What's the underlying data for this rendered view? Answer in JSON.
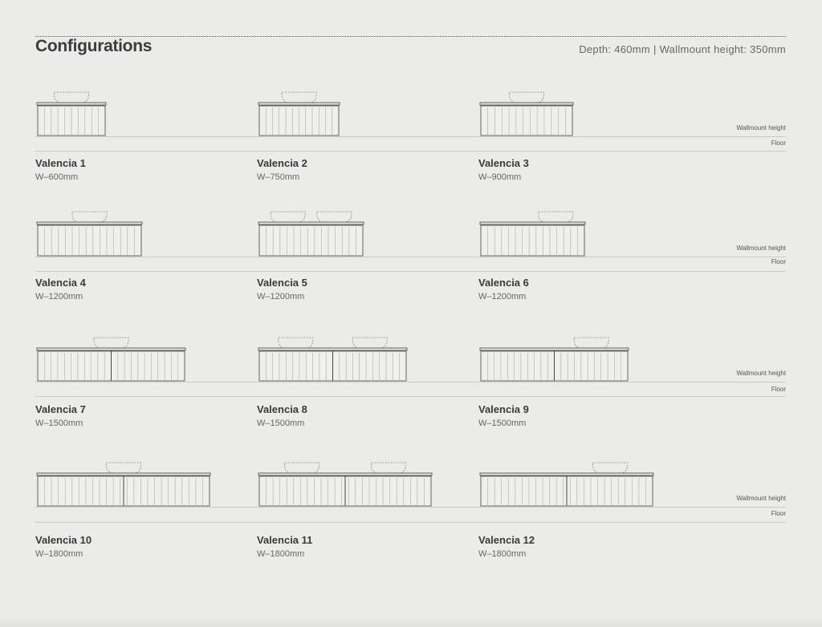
{
  "header": {
    "title": "Configurations",
    "spec": "Depth: 460mm | Wallmount height: 350mm"
  },
  "labels": {
    "wallmount": "Wallmount height",
    "floor": "Floor"
  },
  "configurations": [
    {
      "name": "Valencia 1",
      "width": "W–600mm",
      "sections": 1,
      "basins": [
        "center"
      ]
    },
    {
      "name": "Valencia 2",
      "width": "W–750mm",
      "sections": 1,
      "basins": [
        "center"
      ]
    },
    {
      "name": "Valencia 3",
      "width": "W–900mm",
      "sections": 1,
      "basins": [
        "center"
      ]
    },
    {
      "name": "Valencia 4",
      "width": "W–1200mm",
      "sections": 1,
      "basins": [
        "center"
      ]
    },
    {
      "name": "Valencia 5",
      "width": "W–1200mm",
      "sections": 1,
      "basins": [
        "left",
        "right"
      ]
    },
    {
      "name": "Valencia 6",
      "width": "W–1200mm",
      "sections": 1,
      "basins": [
        "right"
      ]
    },
    {
      "name": "Valencia 7",
      "width": "W–1500mm",
      "sections": 2,
      "basins": [
        "center"
      ]
    },
    {
      "name": "Valencia 8",
      "width": "W–1500mm",
      "sections": 2,
      "basins": [
        "left",
        "right"
      ]
    },
    {
      "name": "Valencia 9",
      "width": "W–1500mm",
      "sections": 2,
      "basins": [
        "right"
      ]
    },
    {
      "name": "Valencia 10",
      "width": "W–1800mm",
      "sections": 2,
      "basins": [
        "center"
      ]
    },
    {
      "name": "Valencia 11",
      "width": "W–1800mm",
      "sections": 2,
      "basins": [
        "left",
        "right"
      ]
    },
    {
      "name": "Valencia 12",
      "width": "W–1800mm",
      "sections": 2,
      "basins": [
        "right"
      ]
    }
  ]
}
